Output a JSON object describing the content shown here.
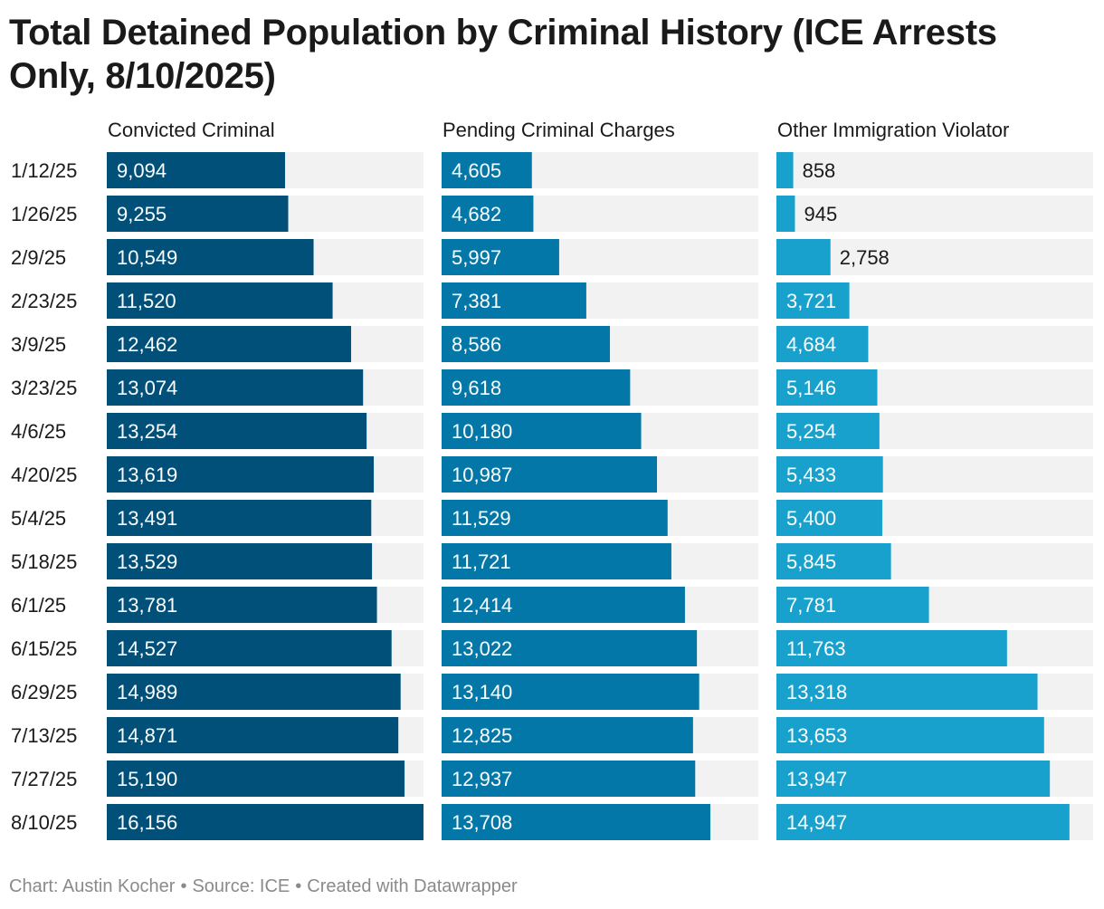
{
  "title": "Total Detained Population by Criminal History (ICE Arrests Only, 8/10/2025)",
  "footer": {
    "credit": "Chart: Austin Kocher",
    "source": "Source: ICE",
    "tool": "Created with Datawrapper"
  },
  "chart_data": {
    "type": "bar",
    "categories": [
      "1/12/25",
      "1/26/25",
      "2/9/25",
      "2/23/25",
      "3/9/25",
      "3/23/25",
      "4/6/25",
      "4/20/25",
      "5/4/25",
      "5/18/25",
      "6/1/25",
      "6/15/25",
      "6/29/25",
      "7/13/25",
      "7/27/25",
      "8/10/25"
    ],
    "xlim": [
      0,
      16156
    ],
    "grid": false,
    "series": [
      {
        "name": "Convicted Criminal",
        "color": "#00507a",
        "values": [
          9094,
          9255,
          10549,
          11520,
          12462,
          13074,
          13254,
          13619,
          13491,
          13529,
          13781,
          14527,
          14989,
          14871,
          15190,
          16156
        ],
        "labels": [
          "9,094",
          "9,255",
          "10,549",
          "11,520",
          "12,462",
          "13,074",
          "13,254",
          "13,619",
          "13,491",
          "13,529",
          "13,781",
          "14,527",
          "14,989",
          "14,871",
          "15,190",
          "16,156"
        ]
      },
      {
        "name": "Pending Criminal Charges",
        "color": "#0378a8",
        "values": [
          4605,
          4682,
          5997,
          7381,
          8586,
          9618,
          10180,
          10987,
          11529,
          11721,
          12414,
          13022,
          13140,
          12825,
          12937,
          13708
        ],
        "labels": [
          "4,605",
          "4,682",
          "5,997",
          "7,381",
          "8,586",
          "9,618",
          "10,180",
          "10,987",
          "11,529",
          "11,721",
          "12,414",
          "13,022",
          "13,140",
          "12,825",
          "12,937",
          "13,708"
        ]
      },
      {
        "name": "Other Immigration Violator",
        "color": "#18a1cd",
        "values": [
          858,
          945,
          2758,
          3721,
          4684,
          5146,
          5254,
          5433,
          5400,
          5845,
          7781,
          11763,
          13318,
          13653,
          13947,
          14947
        ],
        "labels": [
          "858",
          "945",
          "2,758",
          "3,721",
          "4,684",
          "5,146",
          "5,254",
          "5,433",
          "5,400",
          "5,845",
          "7,781",
          "11,763",
          "13,318",
          "13,653",
          "13,947",
          "14,947"
        ]
      }
    ],
    "track_color": "#f2f2f2",
    "label_color_inside": "#ffffff",
    "label_color_outside": "#1a1a1a"
  }
}
